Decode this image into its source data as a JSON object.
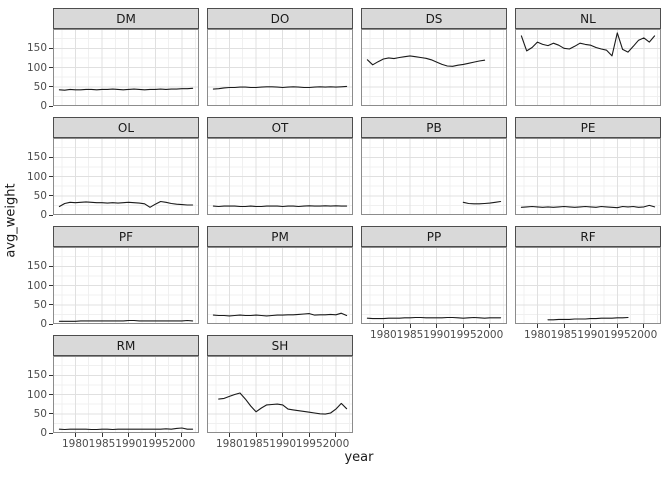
{
  "chart_data": {
    "type": "line",
    "title": "",
    "xlabel": "year",
    "ylabel": "avg_weight",
    "x_domain": [
      1975.8,
      2003.2
    ],
    "ylim": [
      0,
      200
    ],
    "x_ticks": [
      1980,
      1985,
      1990,
      1995,
      2000
    ],
    "x_tick_labels": [
      "1980",
      "1985",
      "1990",
      "1995",
      "2000"
    ],
    "y_ticks": [
      0,
      50,
      100,
      150
    ],
    "y_tick_labels": [
      "0",
      "50",
      "100",
      "150"
    ],
    "x_minor": [
      1977.5,
      1982.5,
      1987.5,
      1992.5,
      1997.5,
      2002.5
    ],
    "y_minor": [
      25,
      75,
      125,
      175
    ],
    "grid": "on",
    "legend": "none",
    "facet_layout": {
      "rows": 4,
      "cols": 4
    },
    "facets": [
      {
        "label": "DM",
        "years": [
          1977,
          1978,
          1979,
          1980,
          1981,
          1982,
          1983,
          1984,
          1985,
          1986,
          1987,
          1988,
          1989,
          1990,
          1991,
          1992,
          1993,
          1994,
          1995,
          1996,
          1997,
          1998,
          1999,
          2000,
          2001,
          2002
        ],
        "values": [
          42,
          41,
          43,
          42,
          42,
          43,
          43,
          42,
          43,
          43,
          44,
          43,
          42,
          43,
          44,
          43,
          42,
          43,
          43,
          44,
          43,
          44,
          44,
          45,
          45,
          46
        ]
      },
      {
        "label": "DO",
        "years": [
          1977,
          1978,
          1979,
          1980,
          1981,
          1982,
          1983,
          1984,
          1985,
          1986,
          1987,
          1988,
          1989,
          1990,
          1991,
          1992,
          1993,
          1994,
          1995,
          1996,
          1997,
          1998,
          1999,
          2000,
          2001,
          2002
        ],
        "values": [
          44,
          45,
          47,
          48,
          48,
          49,
          49,
          48,
          48,
          49,
          50,
          50,
          49,
          48,
          49,
          50,
          49,
          48,
          48,
          49,
          50,
          49,
          50,
          49,
          50,
          51
        ]
      },
      {
        "label": "DS",
        "years": [
          1977,
          1978,
          1979,
          1980,
          1981,
          1982,
          1983,
          1984,
          1985,
          1986,
          1987,
          1988,
          1989,
          1990,
          1991,
          1992,
          1993,
          1994,
          1995,
          1996,
          1997,
          1998,
          1999
        ],
        "values": [
          120,
          107,
          115,
          122,
          125,
          123,
          126,
          128,
          130,
          128,
          126,
          124,
          120,
          114,
          108,
          104,
          103,
          106,
          108,
          111,
          114,
          117,
          119
        ]
      },
      {
        "label": "NL",
        "years": [
          1977,
          1978,
          1979,
          1980,
          1981,
          1982,
          1983,
          1984,
          1985,
          1986,
          1987,
          1988,
          1989,
          1990,
          1991,
          1992,
          1993,
          1994,
          1995,
          1996,
          1997,
          1998,
          1999,
          2000,
          2001,
          2002
        ],
        "values": [
          182,
          143,
          152,
          166,
          160,
          157,
          163,
          158,
          150,
          148,
          155,
          163,
          160,
          158,
          152,
          148,
          145,
          130,
          190,
          147,
          140,
          155,
          171,
          177,
          166,
          182
        ]
      },
      {
        "label": "OL",
        "years": [
          1977,
          1978,
          1979,
          1980,
          1981,
          1982,
          1983,
          1984,
          1985,
          1986,
          1987,
          1988,
          1989,
          1990,
          1991,
          1992,
          1993,
          1994,
          1995,
          1996,
          1997,
          1998,
          1999,
          2000,
          2001,
          2002
        ],
        "values": [
          22,
          30,
          33,
          32,
          33,
          34,
          33,
          32,
          32,
          31,
          32,
          31,
          32,
          33,
          32,
          31,
          29,
          20,
          28,
          35,
          33,
          30,
          28,
          27,
          26,
          26
        ]
      },
      {
        "label": "OT",
        "years": [
          1977,
          1978,
          1979,
          1980,
          1981,
          1982,
          1983,
          1984,
          1985,
          1986,
          1987,
          1988,
          1989,
          1990,
          1991,
          1992,
          1993,
          1994,
          1995,
          1996,
          1997,
          1998,
          1999,
          2000,
          2001,
          2002
        ],
        "values": [
          23,
          22,
          23,
          23,
          23,
          22,
          22,
          23,
          22,
          22,
          23,
          23,
          23,
          22,
          23,
          23,
          22,
          23,
          24,
          23,
          23,
          24,
          23,
          24,
          23,
          23
        ]
      },
      {
        "label": "PB",
        "years": [
          1995,
          1996,
          1997,
          1998,
          1999,
          2000,
          2001,
          2002
        ],
        "values": [
          33,
          30,
          29,
          29,
          30,
          31,
          33,
          35
        ]
      },
      {
        "label": "PE",
        "years": [
          1977,
          1978,
          1979,
          1980,
          1981,
          1982,
          1983,
          1984,
          1985,
          1986,
          1987,
          1988,
          1989,
          1990,
          1991,
          1992,
          1993,
          1994,
          1995,
          1996,
          1997,
          1998,
          1999,
          2000,
          2001,
          2002
        ],
        "values": [
          20,
          21,
          22,
          21,
          20,
          21,
          20,
          21,
          22,
          21,
          20,
          21,
          22,
          21,
          20,
          22,
          21,
          20,
          19,
          22,
          21,
          22,
          20,
          21,
          25,
          21
        ]
      },
      {
        "label": "PF",
        "years": [
          1977,
          1978,
          1979,
          1980,
          1981,
          1982,
          1983,
          1984,
          1985,
          1986,
          1987,
          1988,
          1989,
          1990,
          1991,
          1992,
          1993,
          1994,
          1995,
          1996,
          1997,
          1998,
          1999,
          2000,
          2001,
          2002
        ],
        "values": [
          7,
          7,
          7,
          7,
          8,
          8,
          8,
          8,
          8,
          8,
          8,
          8,
          8,
          9,
          9,
          8,
          8,
          8,
          8,
          8,
          8,
          8,
          8,
          8,
          9,
          8
        ]
      },
      {
        "label": "PM",
        "years": [
          1977,
          1978,
          1979,
          1980,
          1981,
          1982,
          1983,
          1984,
          1985,
          1986,
          1987,
          1988,
          1989,
          1990,
          1991,
          1992,
          1993,
          1994,
          1995,
          1996,
          1997,
          1998,
          1999,
          2000,
          2001,
          2002
        ],
        "values": [
          23,
          22,
          22,
          21,
          22,
          23,
          22,
          22,
          23,
          22,
          21,
          22,
          23,
          23,
          24,
          24,
          25,
          26,
          27,
          23,
          24,
          24,
          25,
          24,
          28,
          22
        ]
      },
      {
        "label": "PP",
        "years": [
          1977,
          1978,
          1979,
          1980,
          1981,
          1982,
          1983,
          1984,
          1985,
          1986,
          1987,
          1988,
          1989,
          1990,
          1991,
          1992,
          1993,
          1994,
          1995,
          1996,
          1997,
          1998,
          1999,
          2000,
          2001,
          2002
        ],
        "values": [
          15,
          14,
          14,
          14,
          15,
          15,
          15,
          16,
          16,
          17,
          17,
          16,
          16,
          16,
          16,
          17,
          17,
          16,
          15,
          16,
          17,
          16,
          15,
          16,
          16,
          16
        ]
      },
      {
        "label": "RF",
        "years": [
          1982,
          1983,
          1984,
          1985,
          1986,
          1987,
          1988,
          1989,
          1990,
          1991,
          1992,
          1993,
          1994,
          1995,
          1996,
          1997
        ],
        "values": [
          11,
          11,
          12,
          12,
          12,
          13,
          13,
          13,
          14,
          14,
          15,
          15,
          15,
          16,
          16,
          17
        ]
      },
      {
        "label": "RM",
        "years": [
          1977,
          1978,
          1979,
          1980,
          1981,
          1982,
          1983,
          1984,
          1985,
          1986,
          1987,
          1988,
          1989,
          1990,
          1991,
          1992,
          1993,
          1994,
          1995,
          1996,
          1997,
          1998,
          1999,
          2000,
          2001,
          2002
        ],
        "values": [
          10,
          9,
          10,
          10,
          10,
          10,
          9,
          9,
          10,
          10,
          9,
          10,
          10,
          10,
          10,
          10,
          10,
          10,
          10,
          10,
          11,
          10,
          12,
          13,
          10,
          10
        ]
      },
      {
        "label": "SH",
        "years": [
          1978,
          1979,
          1980,
          1981,
          1982,
          1983,
          1984,
          1985,
          1986,
          1987,
          1988,
          1989,
          1990,
          1991,
          1992,
          1993,
          1994,
          1995,
          1996,
          1997,
          1998,
          1999,
          2000,
          2001,
          2002
        ],
        "values": [
          88,
          90,
          95,
          100,
          104,
          88,
          70,
          55,
          65,
          73,
          74,
          75,
          73,
          62,
          60,
          58,
          56,
          54,
          52,
          50,
          49,
          52,
          62,
          77,
          63
        ]
      }
    ]
  },
  "style": {
    "line_color": "#1a1a1a",
    "strip_bg": "#d9d9d9",
    "strip_border": "#4d4d4d",
    "panel_border": "#8c8c8c",
    "grid_major": "#e0e0e0",
    "grid_minor": "#f0f0f0",
    "tick_label_color": "#4d4d4d",
    "axis_title_color": "#1a1a1a",
    "background": "#ffffff"
  }
}
